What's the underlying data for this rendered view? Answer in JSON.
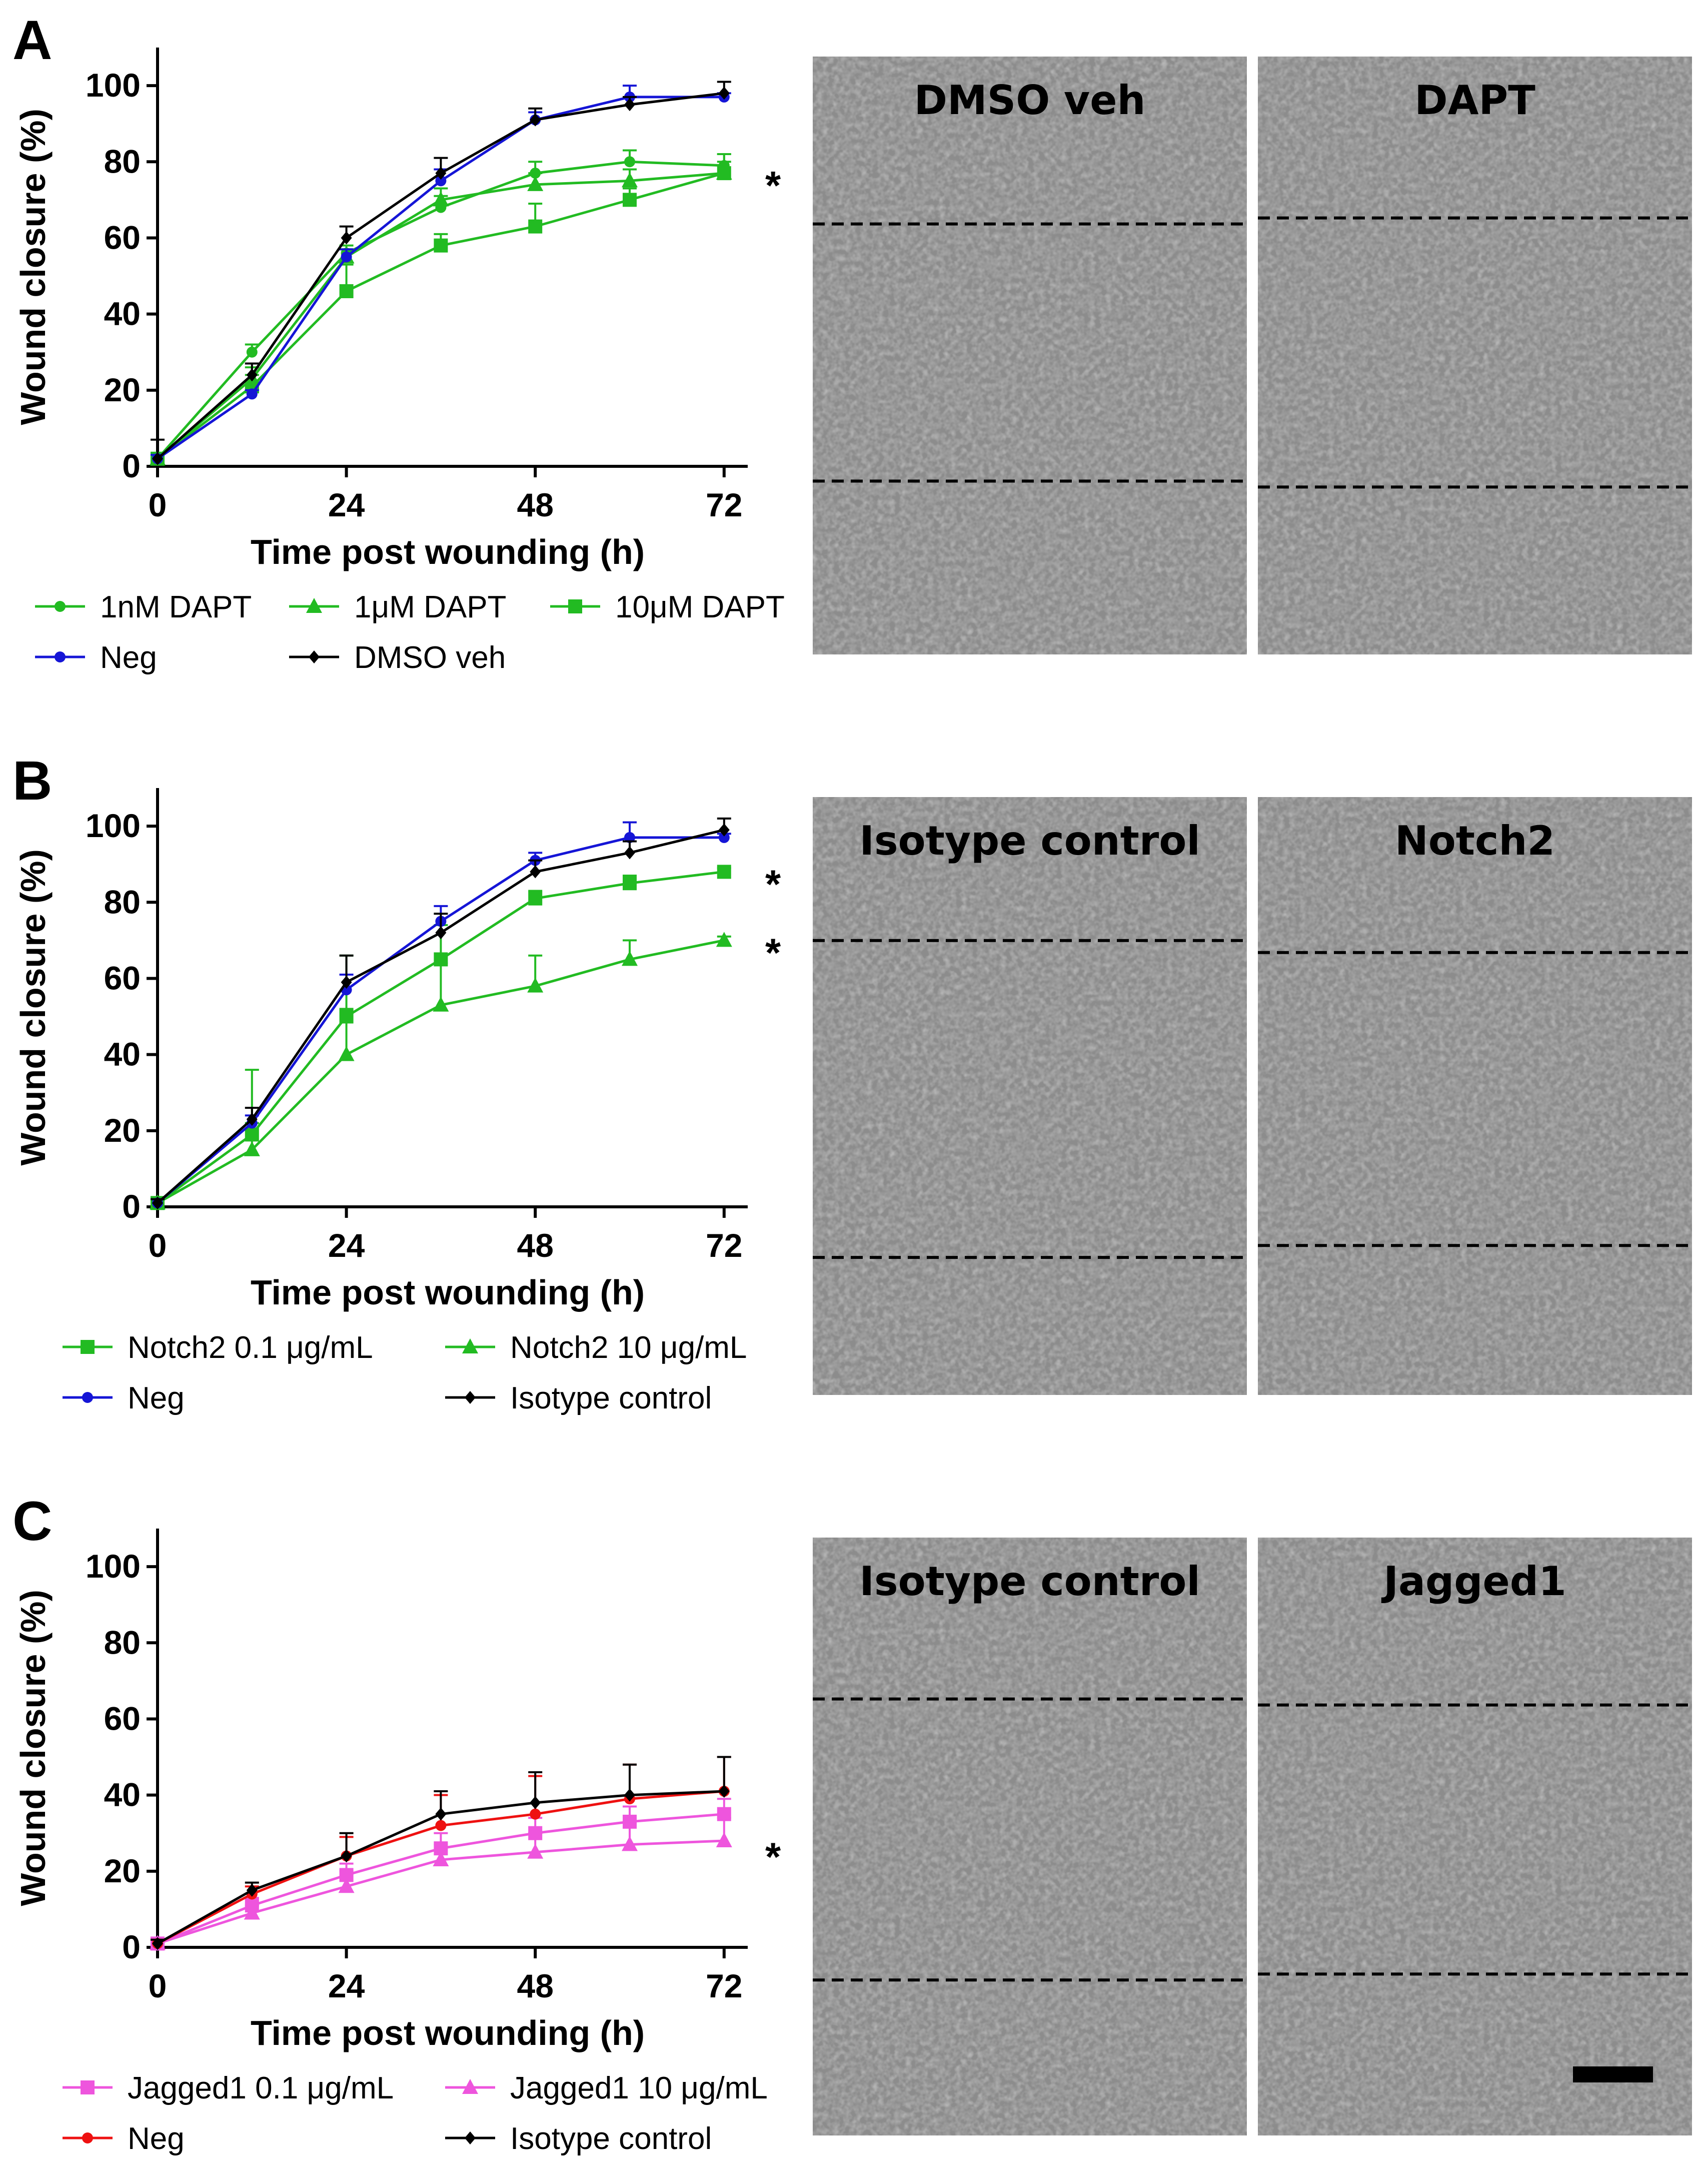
{
  "chart_data": [
    {
      "type": "line",
      "panel_label": "A",
      "xlabel": "Time post wounding (h)",
      "ylabel": "Wound closure (%)",
      "xlim": [
        0,
        75
      ],
      "ylim": [
        0,
        110
      ],
      "xticks": [
        "0",
        "24",
        "48",
        "72"
      ],
      "yticks": [
        "0",
        "20",
        "40",
        "60",
        "80",
        "100"
      ],
      "x": [
        0,
        12,
        24,
        36,
        48,
        60,
        72
      ],
      "series": [
        {
          "name": "1nM DAPT",
          "color": "#22bb22",
          "marker": "circle",
          "values": [
            2,
            30,
            56,
            68,
            77,
            80,
            79
          ],
          "errors": [
            1,
            2,
            2,
            3,
            3,
            3,
            3
          ]
        },
        {
          "name": "1μM DAPT",
          "color": "#22bb22",
          "marker": "triangle",
          "values": [
            2,
            23,
            55,
            70,
            74,
            75,
            77
          ],
          "errors": [
            1,
            3,
            2,
            3,
            3,
            3,
            3
          ]
        },
        {
          "name": "10μM DAPT",
          "color": "#22bb22",
          "marker": "square",
          "values": [
            2,
            21,
            46,
            58,
            63,
            70,
            77
          ],
          "errors": [
            1,
            3,
            7,
            3,
            6,
            3,
            5
          ]
        },
        {
          "name": "Neg",
          "color": "#1515d6",
          "marker": "circle",
          "values": [
            2,
            19,
            55,
            75,
            91,
            97,
            97
          ],
          "errors": [
            1,
            1,
            2,
            3,
            2,
            3,
            1
          ]
        },
        {
          "name": "DMSO veh",
          "color": "#000000",
          "marker": "diamond",
          "values": [
            2,
            24,
            60,
            77,
            91,
            95,
            98
          ],
          "errors": [
            5,
            3,
            3,
            4,
            3,
            2,
            3
          ]
        }
      ],
      "significance": [
        {
          "text": "*",
          "value": 77
        }
      ],
      "legend": {
        "rows": [
          [
            "1nM DAPT",
            "1μM DAPT",
            "10μM DAPT"
          ],
          [
            "Neg",
            "DMSO veh"
          ]
        ]
      },
      "images": [
        {
          "title": "DMSO veh",
          "lines": [
            0.28,
            0.71
          ]
        },
        {
          "title": "DAPT",
          "lines": [
            0.27,
            0.72
          ]
        }
      ]
    },
    {
      "type": "line",
      "panel_label": "B",
      "xlabel": "Time post wounding (h)",
      "ylabel": "Wound closure (%)",
      "xlim": [
        0,
        75
      ],
      "ylim": [
        0,
        110
      ],
      "xticks": [
        "0",
        "24",
        "48",
        "72"
      ],
      "yticks": [
        "0",
        "20",
        "40",
        "60",
        "80",
        "100"
      ],
      "x": [
        0,
        12,
        24,
        36,
        48,
        60,
        72
      ],
      "series": [
        {
          "name": "Notch2 0.1 μg/mL",
          "color": "#22bb22",
          "marker": "square",
          "values": [
            1,
            19,
            50,
            65,
            81,
            85,
            88
          ],
          "errors": [
            1,
            3,
            16,
            9,
            2,
            2,
            1
          ]
        },
        {
          "name": "Notch2 10 μg/mL",
          "color": "#22bb22",
          "marker": "triangle",
          "values": [
            1,
            15,
            40,
            53,
            58,
            65,
            70
          ],
          "errors": [
            1,
            21,
            12,
            11,
            8,
            5,
            1
          ]
        },
        {
          "name": "Neg",
          "color": "#1515d6",
          "marker": "circle",
          "values": [
            1,
            22,
            57,
            75,
            91,
            97,
            97
          ],
          "errors": [
            1,
            2,
            4,
            4,
            2,
            4,
            1
          ]
        },
        {
          "name": "Isotype control",
          "color": "#000000",
          "marker": "diamond",
          "values": [
            1,
            23,
            59,
            72,
            88,
            93,
            99
          ],
          "errors": [
            1,
            3,
            7,
            5,
            3,
            3,
            3
          ]
        }
      ],
      "significance": [
        {
          "text": "*",
          "value": 88
        },
        {
          "text": "*",
          "value": 70
        }
      ],
      "legend": {
        "rows": [
          [
            "Notch2 0.1 μg/mL",
            "Notch2 10 μg/mL"
          ],
          [
            "Neg",
            "Isotype control"
          ]
        ]
      },
      "images": [
        {
          "title": "Isotype control",
          "lines": [
            0.24,
            0.77
          ]
        },
        {
          "title": "Notch2",
          "lines": [
            0.26,
            0.75
          ]
        }
      ]
    },
    {
      "type": "line",
      "panel_label": "C",
      "xlabel": "Time post wounding (h)",
      "ylabel": "Wound closure (%)",
      "xlim": [
        0,
        75
      ],
      "ylim": [
        0,
        110
      ],
      "xticks": [
        "0",
        "24",
        "48",
        "72"
      ],
      "yticks": [
        "0",
        "20",
        "40",
        "60",
        "80",
        "100"
      ],
      "x": [
        0,
        12,
        24,
        36,
        48,
        60,
        72
      ],
      "series": [
        {
          "name": "Jagged1 0.1 μg/mL",
          "color": "#ee55dd",
          "marker": "square",
          "values": [
            1,
            11,
            19,
            26,
            30,
            33,
            35
          ],
          "errors": [
            1,
            2,
            3,
            4,
            4,
            4,
            4
          ]
        },
        {
          "name": "Jagged1 10 μg/mL",
          "color": "#ee55dd",
          "marker": "triangle",
          "values": [
            1,
            9,
            16,
            23,
            25,
            27,
            28
          ],
          "errors": [
            1,
            2,
            4,
            4,
            5,
            6,
            6
          ]
        },
        {
          "name": "Neg",
          "color": "#ee1111",
          "marker": "circle",
          "values": [
            1,
            14,
            24,
            32,
            35,
            39,
            41
          ],
          "errors": [
            1,
            2,
            5,
            8,
            10,
            9,
            9
          ]
        },
        {
          "name": "Isotype control",
          "color": "#000000",
          "marker": "diamond",
          "values": [
            1,
            15,
            24,
            35,
            38,
            40,
            41
          ],
          "errors": [
            1,
            2,
            6,
            6,
            8,
            8,
            9
          ]
        }
      ],
      "significance": [
        {
          "text": "*",
          "value": 27
        }
      ],
      "legend": {
        "rows": [
          [
            "Jagged1 0.1 μg/mL",
            "Jagged1 10 μg/mL"
          ],
          [
            "Neg",
            "Isotype control"
          ]
        ]
      },
      "images": [
        {
          "title": "Isotype control",
          "lines": [
            0.27,
            0.74
          ]
        },
        {
          "title": "Jagged1",
          "lines": [
            0.28,
            0.73
          ]
        }
      ],
      "scale_bar": true
    }
  ]
}
